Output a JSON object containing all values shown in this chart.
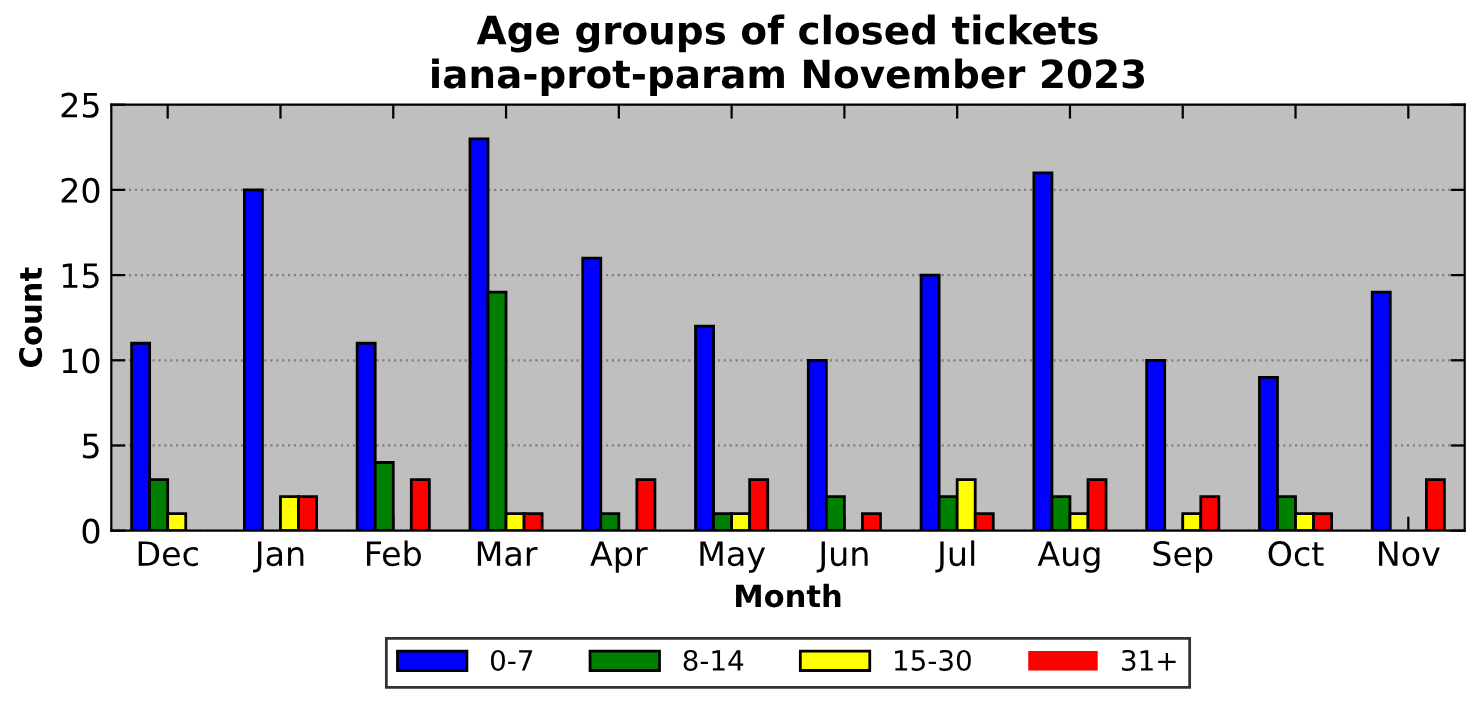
{
  "chart_data": {
    "type": "bar",
    "title": "Age groups of closed tickets\niana-prot-param November 2023",
    "xlabel": "Month",
    "ylabel": "Count",
    "categories": [
      "Dec",
      "Jan",
      "Feb",
      "Mar",
      "Apr",
      "May",
      "Jun",
      "Jul",
      "Aug",
      "Sep",
      "Oct",
      "Nov"
    ],
    "series": [
      {
        "name": "0-7",
        "color": "#0000ff",
        "values": [
          11,
          20,
          11,
          23,
          16,
          12,
          10,
          15,
          21,
          10,
          9,
          14
        ]
      },
      {
        "name": "8-14",
        "color": "#008000",
        "values": [
          3,
          0,
          4,
          14,
          1,
          1,
          2,
          2,
          2,
          0,
          2,
          0
        ]
      },
      {
        "name": "15-30",
        "color": "#ffff00",
        "values": [
          1,
          2,
          0,
          1,
          0,
          1,
          0,
          3,
          1,
          1,
          1,
          0
        ]
      },
      {
        "name": "31+",
        "color": "#ff0000",
        "values": [
          0,
          2,
          3,
          1,
          3,
          3,
          1,
          1,
          3,
          2,
          1,
          3
        ]
      }
    ],
    "ylim": [
      0,
      25
    ],
    "yticks": [
      0,
      5,
      10,
      15,
      20,
      25
    ],
    "grid": "y",
    "legend": "bottom"
  }
}
